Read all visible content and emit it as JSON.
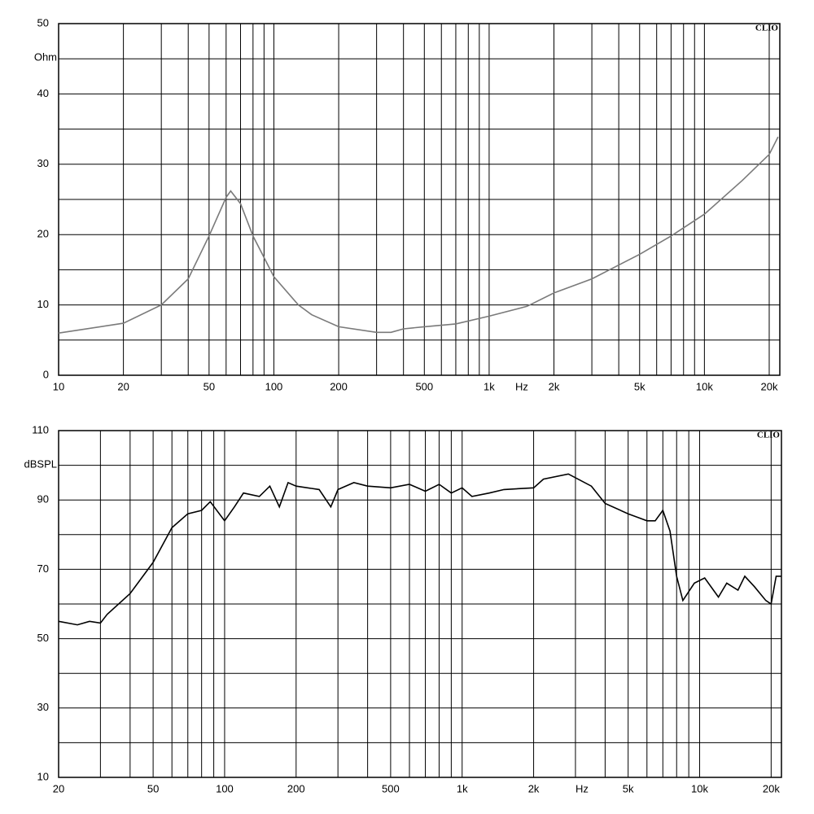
{
  "chart_data": [
    {
      "type": "line",
      "x_label": "Hz",
      "y_label": "Ohm",
      "annotation": "CLIO",
      "log_x": true,
      "grid": true,
      "color": "#7a7a7a",
      "x": [
        10,
        20,
        30,
        40,
        50,
        60,
        63,
        70,
        80,
        100,
        130,
        150,
        200,
        300,
        350,
        400,
        500,
        700,
        1000,
        1500,
        2000,
        3000,
        5000,
        7000,
        10000,
        15000,
        20000,
        22000
      ],
      "values": [
        6.0,
        7.4,
        10,
        13.7,
        19.8,
        25.3,
        26.2,
        24.4,
        19.8,
        14,
        10,
        8.6,
        6.9,
        6.1,
        6.1,
        6.6,
        6.9,
        7.3,
        8.4,
        9.8,
        11.7,
        13.7,
        17.2,
        19.8,
        22.9,
        27.7,
        31.4,
        33.9
      ],
      "xlim": [
        10,
        22400
      ],
      "ylim": [
        0,
        50
      ],
      "xticks": [
        10,
        20,
        50,
        100,
        200,
        500,
        {
          "value": 1000,
          "label": "1k"
        },
        {
          "value": 2000,
          "label": "2k"
        },
        {
          "value": 5000,
          "label": "5k"
        },
        {
          "value": 10000,
          "label": "10k"
        },
        {
          "value": 20000,
          "label": "20k"
        }
      ],
      "minor_xticks": [
        30,
        40,
        60,
        70,
        80,
        90,
        300,
        400,
        600,
        700,
        800,
        900,
        3000,
        4000,
        6000,
        7000,
        8000,
        9000
      ],
      "yticks": [
        0,
        10,
        20,
        30,
        40,
        50
      ],
      "minor_yticks": [
        5,
        15,
        25,
        35,
        45
      ]
    },
    {
      "type": "line",
      "x_label": "Hz",
      "y_label": "dBSPL",
      "annotation": "CLIO",
      "log_x": true,
      "grid": true,
      "color": "#000000",
      "x": [
        20,
        24,
        27,
        30,
        32,
        40,
        50,
        60,
        70,
        80,
        87,
        100,
        110,
        120,
        140,
        155,
        170,
        185,
        200,
        250,
        280,
        300,
        350,
        400,
        500,
        600,
        700,
        800,
        900,
        1000,
        1100,
        1300,
        1500,
        2000,
        2200,
        2800,
        3500,
        4000,
        5000,
        6000,
        6500,
        7000,
        7500,
        8000,
        8500,
        9500,
        10500,
        12000,
        13000,
        14500,
        15500,
        17000,
        19000,
        20000,
        21000,
        22000
      ],
      "values": [
        55,
        54,
        55,
        54.5,
        57,
        63,
        72,
        82,
        86,
        87,
        89.5,
        84,
        88,
        92,
        91,
        94,
        88,
        95,
        94,
        93,
        88,
        93,
        95,
        94,
        93.5,
        94.5,
        92.5,
        94.5,
        92,
        93.5,
        91,
        92,
        93,
        93.5,
        96,
        97.5,
        94,
        89,
        86,
        84,
        84,
        87,
        81,
        68,
        61,
        66,
        67.5,
        62,
        66,
        64,
        68,
        65,
        61,
        60,
        68,
        68
      ],
      "xlim": [
        20,
        22100
      ],
      "ylim": [
        10,
        110
      ],
      "xticks": [
        20,
        50,
        100,
        200,
        500,
        {
          "value": 1000,
          "label": "1k"
        },
        {
          "value": 2000,
          "label": "2k"
        },
        {
          "value": 5000,
          "label": "5k"
        },
        {
          "value": 10000,
          "label": "10k"
        },
        {
          "value": 20000,
          "label": "20k"
        }
      ],
      "minor_xticks": [
        30,
        40,
        60,
        70,
        80,
        90,
        300,
        400,
        600,
        700,
        800,
        900,
        3000,
        4000,
        6000,
        7000,
        8000,
        9000
      ],
      "yticks": [
        10,
        30,
        50,
        70,
        90,
        110
      ],
      "minor_yticks": [
        20,
        40,
        60,
        80,
        100
      ]
    }
  ]
}
